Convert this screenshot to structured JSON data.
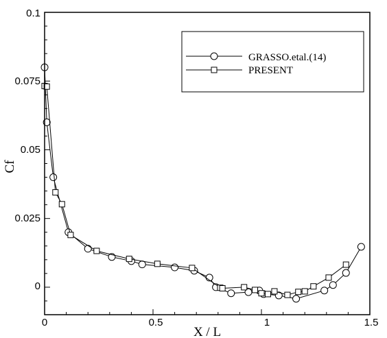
{
  "chart_data": {
    "type": "line",
    "xlabel": "X / L",
    "ylabel": "Cf",
    "xlim": [
      0,
      1.5
    ],
    "ylim": [
      -0.01,
      0.1
    ],
    "x_ticks": [
      "0",
      "0.5",
      "1",
      "1.5"
    ],
    "y_ticks": [
      "0",
      "0.025",
      "0.05",
      "0.075",
      "0.1"
    ],
    "legend_position": "top-right",
    "grid": false,
    "series": [
      {
        "name": "GRASSO.etal.(14)",
        "marker": "circle",
        "color": "#000000",
        "x": [
          0.0,
          0.01,
          0.04,
          0.11,
          0.2,
          0.31,
          0.4,
          0.45,
          0.6,
          0.69,
          0.76,
          0.79,
          0.86,
          0.94,
          0.99,
          1.01,
          1.08,
          1.16,
          1.29,
          1.33,
          1.39,
          1.46
        ],
        "y": [
          0.08,
          0.06,
          0.04,
          0.02,
          0.014,
          0.011,
          0.0095,
          0.0083,
          0.0072,
          0.006,
          0.0035,
          0.0,
          -0.0022,
          -0.0018,
          -0.0012,
          -0.0025,
          -0.003,
          -0.0042,
          -0.0012,
          0.0008,
          0.0052,
          0.0147
        ]
      },
      {
        "name": "PRESENT",
        "marker": "square",
        "color": "#000000",
        "x": [
          0.0,
          0.01,
          0.05,
          0.08,
          0.12,
          0.24,
          0.39,
          0.52,
          0.68,
          0.81,
          0.82,
          0.92,
          0.97,
          1.0,
          1.03,
          1.06,
          1.12,
          1.17,
          1.2,
          1.24,
          1.31,
          1.39
        ],
        "y": [
          0.0732,
          0.073,
          0.0345,
          0.0302,
          0.019,
          0.0132,
          0.0103,
          0.0085,
          0.007,
          -0.0002,
          -0.0004,
          0.0,
          -0.001,
          -0.0022,
          -0.0025,
          -0.0015,
          -0.0028,
          -0.0017,
          -0.0015,
          0.0003,
          0.0035,
          0.0082
        ]
      }
    ]
  }
}
